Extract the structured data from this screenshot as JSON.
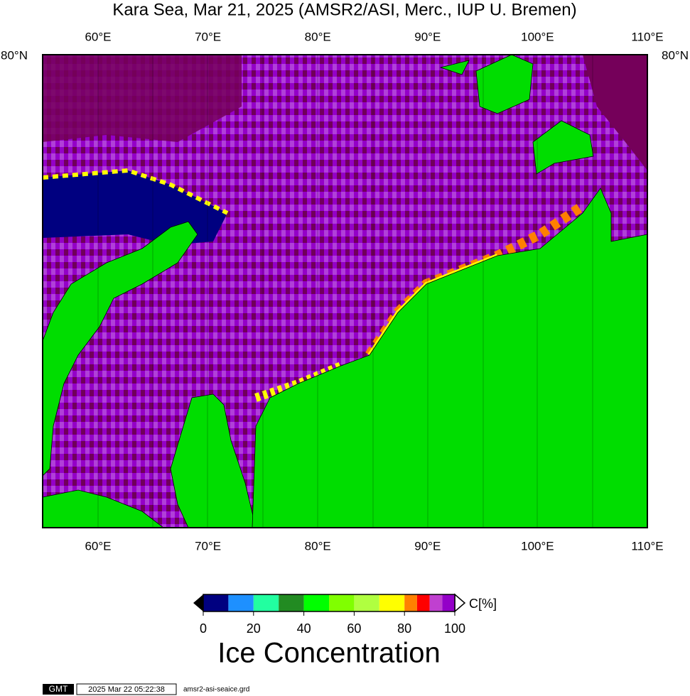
{
  "header": {
    "title": "Kara Sea, Mar 21, 2025 (AMSR2/ASI, Merc., IUP U. Bremen)"
  },
  "map": {
    "lon_labels": [
      "60°E",
      "70°E",
      "80°E",
      "90°E",
      "100°E",
      "110°E"
    ],
    "lat_label": "80°N"
  },
  "colorbar": {
    "ticks": [
      0,
      20,
      40,
      60,
      80,
      100
    ],
    "unit": "C[%]",
    "label": "Ice Concentration"
  },
  "footer": {
    "logo": "GMT",
    "timestamp": "2025 Mar 22 05:22:38",
    "file": "amsr2-asi-seaice.grd"
  }
}
